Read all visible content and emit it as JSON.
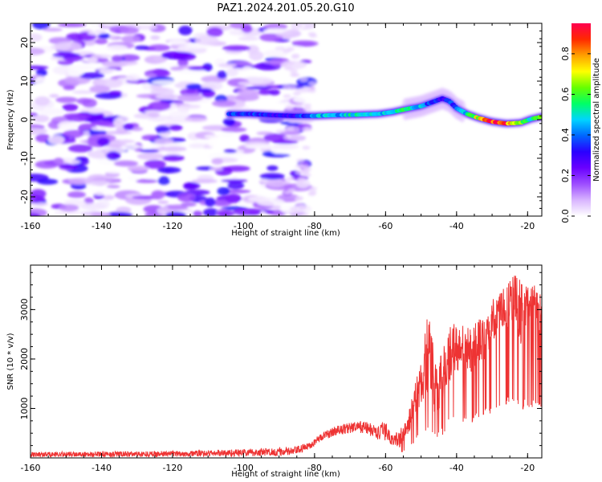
{
  "figure": {
    "title": "PAZ1.2024.201.05.20.G10"
  },
  "chart_data": [
    {
      "type": "heatmap",
      "xlabel": "Height of straight line (km)",
      "ylabel": "Frequency (Hz)",
      "xlim": [
        -160,
        -16
      ],
      "ylim": [
        -25,
        25
      ],
      "x_ticks": [
        -160,
        -140,
        -120,
        -100,
        -80,
        -60,
        -40,
        -20
      ],
      "y_ticks": [
        -20,
        -10,
        0,
        10,
        20
      ],
      "grid": false,
      "colorbar": {
        "label": "Normalized spectral amplitude",
        "range": [
          0,
          0.95
        ],
        "ticks": [
          0.0,
          0.2,
          0.4,
          0.6,
          0.8
        ],
        "colormap": "gist_rainbow_r",
        "stops": [
          "#ffffff",
          "#d8b4ff",
          "#9d4dff",
          "#6a00ff",
          "#2a00ff",
          "#0066ff",
          "#00d4ff",
          "#00ff66",
          "#66ff00",
          "#ffff00",
          "#ffa000",
          "#ff2a00",
          "#ff0050"
        ]
      },
      "noise_region_x": [
        -160,
        -82
      ],
      "signal_ridge": {
        "x": [
          -104,
          -98,
          -92,
          -86,
          -80,
          -74,
          -68,
          -62,
          -58,
          -54,
          -50,
          -47,
          -44,
          -42,
          -40,
          -37,
          -34,
          -30,
          -26,
          -22,
          -19,
          -16
        ],
        "y": [
          1.5,
          1.5,
          1.2,
          1.0,
          1.0,
          1.2,
          1.3,
          1.5,
          2.0,
          2.8,
          3.5,
          4.5,
          5.5,
          4.8,
          3.0,
          1.5,
          0.5,
          -0.5,
          -1.0,
          -0.8,
          0.2,
          0.8
        ],
        "amplitude": [
          0.35,
          0.35,
          0.3,
          0.3,
          0.45,
          0.45,
          0.5,
          0.45,
          0.5,
          0.55,
          0.45,
          0.35,
          0.3,
          0.35,
          0.4,
          0.5,
          0.7,
          0.9,
          0.85,
          0.6,
          0.5,
          0.6
        ]
      }
    },
    {
      "type": "line",
      "xlabel": "Height of straight line (km)",
      "ylabel": "SNR (10 * v/v)",
      "xlim": [
        -160,
        -16
      ],
      "ylim": [
        0,
        3900
      ],
      "x_ticks": [
        -160,
        -140,
        -120,
        -100,
        -80,
        -60,
        -40,
        -20
      ],
      "y_ticks": [
        1000,
        2000,
        3000
      ],
      "grid": false,
      "series": [
        {
          "color": "#ee3333",
          "envelope_x": [
            -160,
            -140,
            -120,
            -100,
            -86,
            -82,
            -78,
            -74,
            -70,
            -66,
            -62,
            -60,
            -58,
            -56,
            -54,
            -52,
            -50,
            -48,
            -46,
            -44,
            -42,
            -40,
            -38,
            -36,
            -34,
            -32,
            -30,
            -28,
            -26,
            -24,
            -22,
            -20,
            -18,
            -16
          ],
          "envelope_low": [
            20,
            20,
            25,
            30,
            40,
            150,
            350,
            450,
            500,
            500,
            350,
            350,
            250,
            200,
            400,
            700,
            1000,
            1200,
            800,
            1000,
            1500,
            1700,
            1800,
            1700,
            1900,
            2000,
            2300,
            2600,
            2600,
            2700,
            2300,
            2500,
            2600,
            2300
          ],
          "envelope_high": [
            120,
            130,
            140,
            180,
            220,
            300,
            500,
            650,
            720,
            750,
            650,
            750,
            450,
            600,
            800,
            1400,
            2000,
            3000,
            2000,
            2100,
            2800,
            2700,
            2700,
            2600,
            2800,
            3000,
            3200,
            3300,
            3500,
            3800,
            3600,
            3500,
            3500,
            3300
          ]
        }
      ]
    }
  ]
}
